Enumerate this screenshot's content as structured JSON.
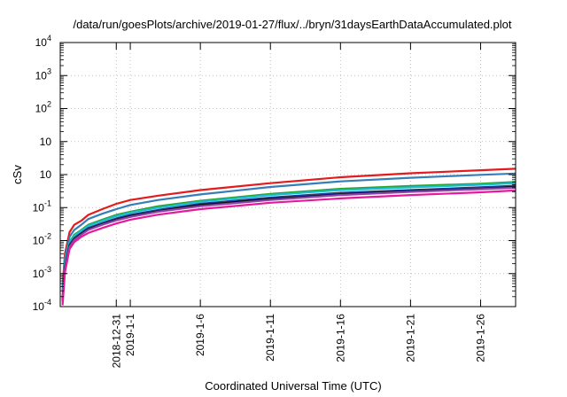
{
  "chart_data": {
    "type": "line",
    "title": "/data/run/goesPlots/archive/2019-01-27/flux/../bryn/31daysEarthDataAccumulated.plot",
    "xlabel": "Coordinated Universal Time (UTC)",
    "ylabel": "cSv",
    "x_scale": "date",
    "x_range": [
      "2018-12-27T00:00",
      "2019-01-28T12:00"
    ],
    "y_scale": "log",
    "ylim": [
      0.0001,
      10000
    ],
    "grid": true,
    "legend": "none",
    "x_ticks": [
      {
        "value": "2018-12-31",
        "label": "2018-12-31"
      },
      {
        "value": "2019-01-01",
        "label": "2019-1-1"
      },
      {
        "value": "2019-01-06",
        "label": "2019-1-6"
      },
      {
        "value": "2019-01-11",
        "label": "2019-1-11"
      },
      {
        "value": "2019-01-16",
        "label": "2019-1-16"
      },
      {
        "value": "2019-01-21",
        "label": "2019-1-21"
      },
      {
        "value": "2019-01-26",
        "label": "2019-1-26"
      }
    ],
    "y_ticks": [
      {
        "value": 0.0001,
        "base": "10",
        "exp": "-4"
      },
      {
        "value": 0.001,
        "base": "10",
        "exp": "-3"
      },
      {
        "value": 0.01,
        "base": "10",
        "exp": "-2"
      },
      {
        "value": 0.1,
        "base": "10",
        "exp": "-1"
      },
      {
        "value": 1,
        "label": "10"
      },
      {
        "value": 10,
        "label": "10"
      },
      {
        "value": 100,
        "base": "10",
        "exp": "2"
      },
      {
        "value": 1000,
        "base": "10",
        "exp": "3"
      },
      {
        "value": 10000,
        "base": "10",
        "exp": "4"
      }
    ],
    "series": [
      {
        "color": "#e41a1c",
        "x": [
          "2018-12-27T04:00",
          "2018-12-27T08:00",
          "2018-12-27T16:00",
          "2018-12-28T00:00",
          "2018-12-28T12:00",
          "2018-12-29T00:00",
          "2018-12-30T00:00",
          "2018-12-31T00:00",
          "2019-01-01T00:00",
          "2019-01-03T00:00",
          "2019-01-06T00:00",
          "2019-01-11T00:00",
          "2019-01-16T00:00",
          "2019-01-21T00:00",
          "2019-01-26T00:00",
          "2019-01-28T12:00"
        ],
        "y": [
          0.0004,
          0.004,
          0.018,
          0.03,
          0.04,
          0.06,
          0.09,
          0.13,
          0.17,
          0.23,
          0.34,
          0.55,
          0.83,
          1.1,
          1.35,
          1.5
        ]
      },
      {
        "color": "#377eb8",
        "x": [
          "2018-12-27T04:00",
          "2018-12-27T08:00",
          "2018-12-27T16:00",
          "2018-12-28T00:00",
          "2018-12-28T12:00",
          "2018-12-29T00:00",
          "2018-12-30T00:00",
          "2018-12-31T00:00",
          "2019-01-01T00:00",
          "2019-01-03T00:00",
          "2019-01-06T00:00",
          "2019-01-11T00:00",
          "2019-01-16T00:00",
          "2019-01-21T00:00",
          "2019-01-26T00:00",
          "2019-01-28T12:00"
        ],
        "y": [
          0.0003,
          0.003,
          0.013,
          0.021,
          0.03,
          0.045,
          0.065,
          0.09,
          0.12,
          0.17,
          0.25,
          0.42,
          0.62,
          0.8,
          0.98,
          1.08
        ]
      },
      {
        "color": "#2ca02c",
        "x": [
          "2018-12-27T04:00",
          "2018-12-27T08:00",
          "2018-12-27T16:00",
          "2018-12-28T00:00",
          "2018-12-28T12:00",
          "2018-12-29T00:00",
          "2018-12-30T00:00",
          "2018-12-31T00:00",
          "2019-01-01T00:00",
          "2019-01-03T00:00",
          "2019-01-06T00:00",
          "2019-01-11T00:00",
          "2019-01-16T00:00",
          "2019-01-21T00:00",
          "2019-01-26T00:00",
          "2019-01-28T12:00"
        ],
        "y": [
          0.0002,
          0.002,
          0.009,
          0.015,
          0.021,
          0.03,
          0.043,
          0.06,
          0.075,
          0.11,
          0.16,
          0.26,
          0.37,
          0.45,
          0.53,
          0.6
        ]
      },
      {
        "color": "#17becf",
        "x": [
          "2018-12-27T04:00",
          "2018-12-27T08:00",
          "2018-12-27T16:00",
          "2018-12-28T00:00",
          "2018-12-28T12:00",
          "2018-12-29T00:00",
          "2018-12-30T00:00",
          "2018-12-31T00:00",
          "2019-01-01T00:00",
          "2019-01-03T00:00",
          "2019-01-06T00:00",
          "2019-01-11T00:00",
          "2019-01-16T00:00",
          "2019-01-21T00:00",
          "2019-01-26T00:00",
          "2019-01-28T12:00"
        ],
        "y": [
          0.00019,
          0.0019,
          0.0085,
          0.014,
          0.02,
          0.028,
          0.04,
          0.055,
          0.07,
          0.1,
          0.15,
          0.24,
          0.34,
          0.41,
          0.49,
          0.55
        ]
      },
      {
        "color": "#1f3a93",
        "x": [
          "2018-12-27T04:00",
          "2018-12-27T08:00",
          "2018-12-27T16:00",
          "2018-12-28T00:00",
          "2018-12-28T12:00",
          "2018-12-29T00:00",
          "2018-12-30T00:00",
          "2018-12-31T00:00",
          "2019-01-01T00:00",
          "2019-01-03T00:00",
          "2019-01-06T00:00",
          "2019-01-11T00:00",
          "2019-01-16T00:00",
          "2019-01-21T00:00",
          "2019-01-26T00:00",
          "2019-01-28T12:00"
        ],
        "y": [
          0.00016,
          0.0016,
          0.0075,
          0.012,
          0.017,
          0.024,
          0.034,
          0.047,
          0.06,
          0.085,
          0.13,
          0.2,
          0.28,
          0.34,
          0.41,
          0.46
        ]
      },
      {
        "color": "#111111",
        "x": [
          "2018-12-27T04:00",
          "2018-12-27T08:00",
          "2018-12-27T16:00",
          "2018-12-28T00:00",
          "2018-12-28T12:00",
          "2018-12-29T00:00",
          "2018-12-30T00:00",
          "2018-12-31T00:00",
          "2019-01-01T00:00",
          "2019-01-03T00:00",
          "2019-01-06T00:00",
          "2019-01-11T00:00",
          "2019-01-16T00:00",
          "2019-01-21T00:00",
          "2019-01-26T00:00",
          "2019-01-28T12:00"
        ],
        "y": [
          0.00015,
          0.0015,
          0.007,
          0.011,
          0.016,
          0.022,
          0.031,
          0.043,
          0.055,
          0.078,
          0.12,
          0.18,
          0.25,
          0.31,
          0.37,
          0.42
        ]
      },
      {
        "color": "#8e44ad",
        "x": [
          "2018-12-27T04:00",
          "2018-12-27T08:00",
          "2018-12-27T16:00",
          "2018-12-28T00:00",
          "2018-12-28T12:00",
          "2018-12-29T00:00",
          "2018-12-30T00:00",
          "2018-12-31T00:00",
          "2019-01-01T00:00",
          "2019-01-03T00:00",
          "2019-01-06T00:00",
          "2019-01-11T00:00",
          "2019-01-16T00:00",
          "2019-01-21T00:00",
          "2019-01-26T00:00",
          "2019-01-28T12:00"
        ],
        "y": [
          0.00014,
          0.0014,
          0.0065,
          0.0105,
          0.015,
          0.021,
          0.03,
          0.041,
          0.052,
          0.075,
          0.11,
          0.17,
          0.24,
          0.3,
          0.36,
          0.4
        ]
      },
      {
        "color": "#e6199b",
        "x": [
          "2018-12-27T04:00",
          "2018-12-27T08:00",
          "2018-12-27T16:00",
          "2018-12-28T00:00",
          "2018-12-28T12:00",
          "2018-12-29T00:00",
          "2018-12-30T00:00",
          "2018-12-31T00:00",
          "2019-01-01T00:00",
          "2019-01-03T00:00",
          "2019-01-06T00:00",
          "2019-01-11T00:00",
          "2019-01-16T00:00",
          "2019-01-21T00:00",
          "2019-01-26T00:00",
          "2019-01-28T12:00"
        ],
        "y": [
          0.00011,
          0.0011,
          0.0055,
          0.009,
          0.013,
          0.017,
          0.024,
          0.033,
          0.043,
          0.061,
          0.09,
          0.14,
          0.19,
          0.24,
          0.29,
          0.33
        ]
      }
    ]
  }
}
